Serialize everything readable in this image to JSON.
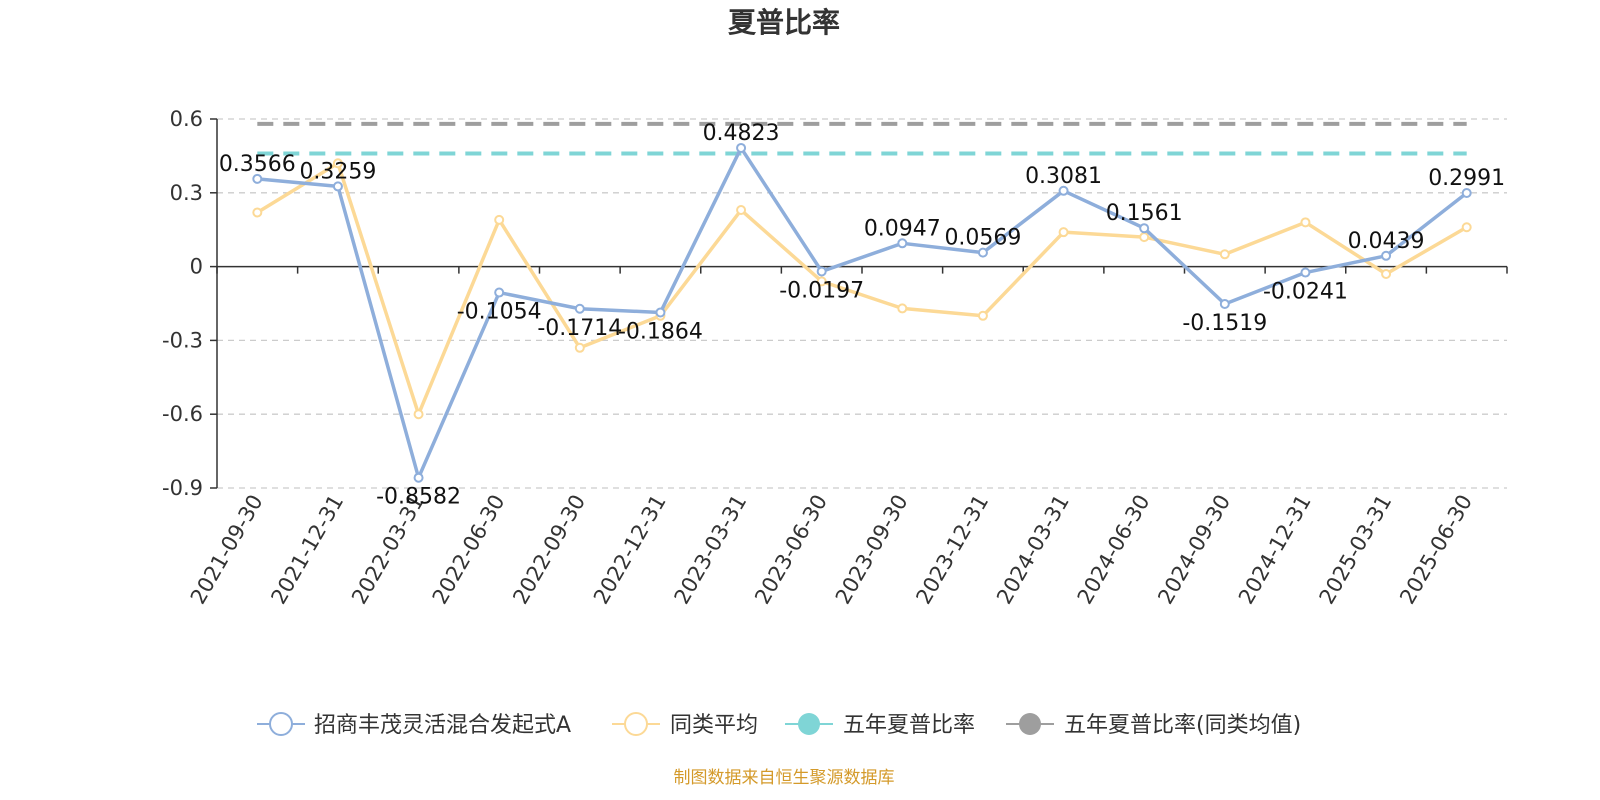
{
  "chart_data": {
    "type": "line",
    "title": "夏普比率",
    "categories": [
      "2021-09-30",
      "2021-12-31",
      "2022-03-31",
      "2022-06-30",
      "2022-09-30",
      "2022-12-31",
      "2023-03-31",
      "2023-06-30",
      "2023-09-30",
      "2023-12-31",
      "2024-03-31",
      "2024-06-30",
      "2024-09-30",
      "2024-12-31",
      "2025-03-31",
      "2025-06-30"
    ],
    "ylim": [
      -0.9,
      0.6
    ],
    "yticks": [
      0.6,
      0.3,
      0,
      -0.3,
      -0.6,
      -0.9
    ],
    "ytick_labels": [
      "0.6",
      "0.3",
      "0",
      "-0.3",
      "-0.6",
      "-0.9"
    ],
    "grid": true,
    "legend_position": "bottom",
    "series": [
      {
        "name": "招商丰茂灵活混合发起式A",
        "color": "#8eaedb",
        "values": [
          0.3566,
          0.3259,
          -0.8582,
          -0.1054,
          -0.1714,
          -0.1864,
          0.4823,
          -0.0197,
          0.0947,
          0.0569,
          0.3081,
          0.1561,
          -0.1519,
          -0.0241,
          0.0439,
          0.2991
        ],
        "labels": [
          "0.3566",
          "0.3259",
          "-0.8582",
          "-0.1054",
          "-0.1714",
          "-0.1864",
          "0.4823",
          "-0.0197",
          "0.0947",
          "0.0569",
          "0.3081",
          "0.1561",
          "-0.1519",
          "-0.0241",
          "0.0439",
          "0.2991"
        ]
      },
      {
        "name": "同类平均",
        "color": "#fcd996",
        "values": [
          0.22,
          0.42,
          -0.6,
          0.19,
          -0.33,
          -0.2,
          0.23,
          -0.06,
          -0.17,
          -0.2,
          0.14,
          0.12,
          0.05,
          0.18,
          -0.03,
          0.16
        ]
      }
    ],
    "reference_lines": [
      {
        "name": "五年夏普比率",
        "color": "#7fd5d6",
        "value": 0.46
      },
      {
        "name": "五年夏普比率(同类均值)",
        "color": "#9e9e9e",
        "value": 0.58
      }
    ]
  },
  "source_text": "制图数据来自恒生聚源数据库",
  "source_color": "#d49a2a"
}
